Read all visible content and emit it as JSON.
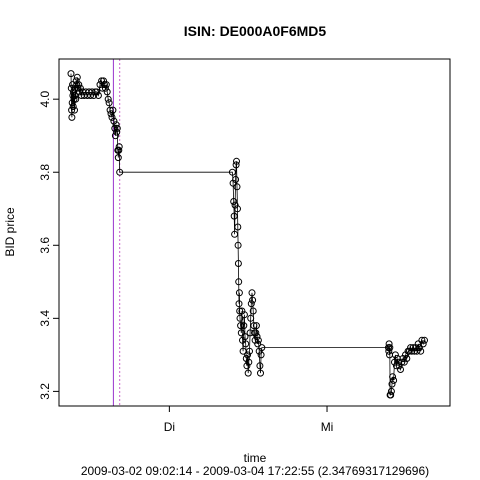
{
  "chart_data": {
    "type": "scatter",
    "title": "ISIN: DE000A0F6MD5",
    "xlabel": "time",
    "subtitle": "2009-03-02 09:02:14 - 2009-03-04 17:22:55 (2.34769317129696)",
    "ylabel": "BID price",
    "x_unit": "days since 2009-03-02 00:00",
    "xlim": [
      0.3,
      2.78
    ],
    "ylim": [
      3.16,
      4.11
    ],
    "x_ticks": [
      {
        "label": "Di",
        "value": 1.0
      },
      {
        "label": "Mi",
        "value": 2.0
      }
    ],
    "y_ticks": [
      3.2,
      3.4,
      3.6,
      3.8,
      4.0
    ],
    "vlines": [
      {
        "x": 0.645,
        "color": "#9933cc",
        "style": "solid"
      },
      {
        "x": 0.685,
        "color": "#cc66cc",
        "style": "dotted"
      }
    ],
    "series": [
      {
        "marker": "open-circle",
        "connected": true,
        "points": [
          [
            0.376,
            4.07
          ],
          [
            0.378,
            4.03
          ],
          [
            0.38,
            3.97
          ],
          [
            0.382,
            3.95
          ],
          [
            0.384,
            3.99
          ],
          [
            0.386,
            4.04
          ],
          [
            0.388,
            4.01
          ],
          [
            0.39,
            3.98
          ],
          [
            0.392,
            4.02
          ],
          [
            0.395,
            4.0
          ],
          [
            0.398,
            3.97
          ],
          [
            0.4,
            4.01
          ],
          [
            0.403,
            4.03
          ],
          [
            0.406,
            4.0
          ],
          [
            0.409,
            4.05
          ],
          [
            0.412,
            4.04
          ],
          [
            0.416,
            4.06
          ],
          [
            0.42,
            4.03
          ],
          [
            0.425,
            4.04
          ],
          [
            0.43,
            4.02
          ],
          [
            0.436,
            4.03
          ],
          [
            0.442,
            4.01
          ],
          [
            0.45,
            4.02
          ],
          [
            0.46,
            4.01
          ],
          [
            0.47,
            4.02
          ],
          [
            0.48,
            4.01
          ],
          [
            0.49,
            4.02
          ],
          [
            0.5,
            4.01
          ],
          [
            0.51,
            4.02
          ],
          [
            0.52,
            4.01
          ],
          [
            0.53,
            4.02
          ],
          [
            0.54,
            4.02
          ],
          [
            0.55,
            4.01
          ],
          [
            0.56,
            4.04
          ],
          [
            0.57,
            4.05
          ],
          [
            0.576,
            4.03
          ],
          [
            0.582,
            4.05
          ],
          [
            0.588,
            4.04
          ],
          [
            0.594,
            4.03
          ],
          [
            0.6,
            4.04
          ],
          [
            0.606,
            4.02
          ],
          [
            0.612,
            4.0
          ],
          [
            0.618,
            3.99
          ],
          [
            0.624,
            3.97
          ],
          [
            0.63,
            3.96
          ],
          [
            0.636,
            3.95
          ],
          [
            0.642,
            3.97
          ],
          [
            0.648,
            3.94
          ],
          [
            0.654,
            3.92
          ],
          [
            0.658,
            3.9
          ],
          [
            0.662,
            3.93
          ],
          [
            0.666,
            3.91
          ],
          [
            0.67,
            3.92
          ],
          [
            0.673,
            3.86
          ],
          [
            0.676,
            3.84
          ],
          [
            0.679,
            3.86
          ],
          [
            0.682,
            3.87
          ],
          [
            0.685,
            3.8
          ],
          [
            1.4,
            3.8
          ],
          [
            1.404,
            3.77
          ],
          [
            1.408,
            3.72
          ],
          [
            1.411,
            3.68
          ],
          [
            1.414,
            3.63
          ],
          [
            1.417,
            3.71
          ],
          [
            1.42,
            3.78
          ],
          [
            1.423,
            3.82
          ],
          [
            1.426,
            3.83
          ],
          [
            1.429,
            3.76
          ],
          [
            1.432,
            3.7
          ],
          [
            1.434,
            3.65
          ],
          [
            1.436,
            3.6
          ],
          [
            1.438,
            3.55
          ],
          [
            1.44,
            3.5
          ],
          [
            1.442,
            3.44
          ],
          [
            1.444,
            3.47
          ],
          [
            1.446,
            3.42
          ],
          [
            1.448,
            3.4
          ],
          [
            1.452,
            3.38
          ],
          [
            1.456,
            3.36
          ],
          [
            1.46,
            3.42
          ],
          [
            1.464,
            3.34
          ],
          [
            1.468,
            3.31
          ],
          [
            1.472,
            3.38
          ],
          [
            1.476,
            3.41
          ],
          [
            1.48,
            3.35
          ],
          [
            1.484,
            3.33
          ],
          [
            1.488,
            3.29
          ],
          [
            1.492,
            3.27
          ],
          [
            1.496,
            3.3
          ],
          [
            1.5,
            3.25
          ],
          [
            1.504,
            3.28
          ],
          [
            1.508,
            3.31
          ],
          [
            1.512,
            3.36
          ],
          [
            1.516,
            3.4
          ],
          [
            1.52,
            3.44
          ],
          [
            1.524,
            3.47
          ],
          [
            1.528,
            3.45
          ],
          [
            1.532,
            3.42
          ],
          [
            1.536,
            3.38
          ],
          [
            1.54,
            3.36
          ],
          [
            1.544,
            3.34
          ],
          [
            1.548,
            3.36
          ],
          [
            1.552,
            3.38
          ],
          [
            1.556,
            3.35
          ],
          [
            1.56,
            3.33
          ],
          [
            1.565,
            3.34
          ],
          [
            1.57,
            3.31
          ],
          [
            1.574,
            3.27
          ],
          [
            1.578,
            3.25
          ],
          [
            1.582,
            3.3
          ],
          [
            1.586,
            3.32
          ],
          [
            2.39,
            3.32
          ],
          [
            2.392,
            3.31
          ],
          [
            2.394,
            3.33
          ],
          [
            2.396,
            3.3
          ],
          [
            2.398,
            3.32
          ],
          [
            2.4,
            3.19
          ],
          [
            2.404,
            3.19
          ],
          [
            2.408,
            3.2
          ],
          [
            2.412,
            3.22
          ],
          [
            2.416,
            3.24
          ],
          [
            2.422,
            3.23
          ],
          [
            2.428,
            3.28
          ],
          [
            2.434,
            3.3
          ],
          [
            2.44,
            3.27
          ],
          [
            2.446,
            3.29
          ],
          [
            2.452,
            3.28
          ],
          [
            2.458,
            3.27
          ],
          [
            2.466,
            3.26
          ],
          [
            2.474,
            3.28
          ],
          [
            2.482,
            3.29
          ],
          [
            2.49,
            3.28
          ],
          [
            2.498,
            3.3
          ],
          [
            2.506,
            3.29
          ],
          [
            2.514,
            3.31
          ],
          [
            2.522,
            3.31
          ],
          [
            2.53,
            3.32
          ],
          [
            2.538,
            3.31
          ],
          [
            2.546,
            3.32
          ],
          [
            2.554,
            3.31
          ],
          [
            2.562,
            3.32
          ],
          [
            2.57,
            3.31
          ],
          [
            2.578,
            3.33
          ],
          [
            2.586,
            3.32
          ],
          [
            2.594,
            3.31
          ],
          [
            2.602,
            3.34
          ],
          [
            2.61,
            3.33
          ],
          [
            2.618,
            3.34
          ]
        ]
      }
    ]
  }
}
